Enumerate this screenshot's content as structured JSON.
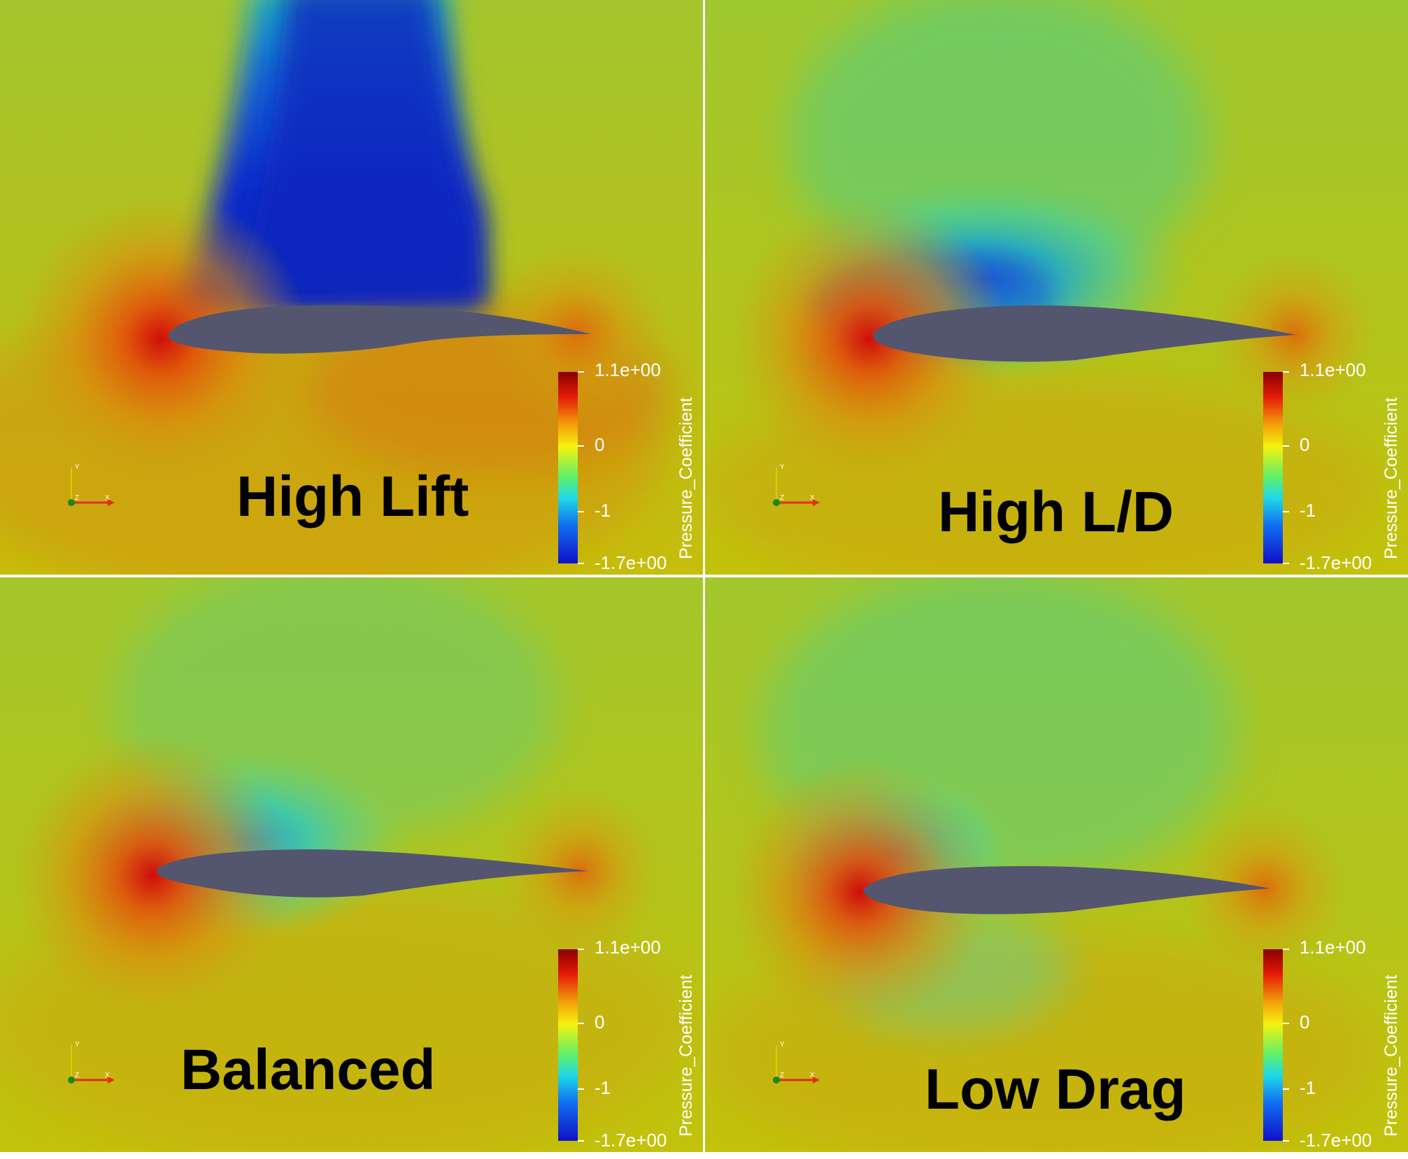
{
  "panels": [
    {
      "id": "high-lift",
      "title": "High Lift"
    },
    {
      "id": "high-ld",
      "title": "High L/D"
    },
    {
      "id": "balanced",
      "title": "Balanced"
    },
    {
      "id": "low-drag",
      "title": "Low Drag"
    }
  ],
  "colorbar": {
    "title": "Pressure_Coefficient",
    "ticks": [
      "1.1e+00",
      "0",
      "-1",
      "-1.7e+00"
    ],
    "range": [
      -1.7,
      1.1
    ]
  },
  "axes_triad": {
    "y": "Y",
    "z": "Z",
    "x": "X"
  },
  "colors": {
    "background_field": "#c4c40c",
    "suction_peak": "#0522b8",
    "stagnation": "#d8150b",
    "airfoil": "#53566e"
  }
}
